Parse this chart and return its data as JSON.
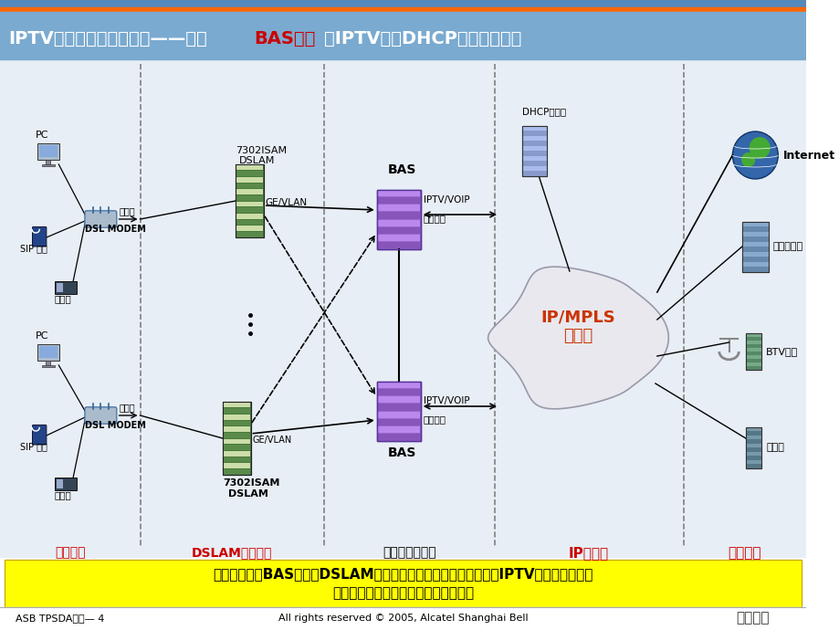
{
  "title_text1": "IPTV承载方案选择二之二——基于",
  "title_highlight": "BAS冗余",
  "title_text2": "的IPTV业务DHCP接入认证模式",
  "bg_color": "#ffffff",
  "header_bg": "#6699cc",
  "header_stripe_color": "#ff6600",
  "bottom_text": "网络冗余需要BAS设备和DSLAM设备支持相关功能和特性，在规模IPTV也时端口压力非\n常大，成本过高，网络的可扩展性差。",
  "bottom_bg": "#ffff00",
  "footer_left": "ASB TPSDA介绍— 4",
  "footer_center": "All rights reserved © 2005, Alcatel Shanghai Bell",
  "label_home": "家庭网络",
  "label_dslam": "DSLAM宽带接入",
  "label_bas": "业务接入控制层",
  "label_ip": "IP城域网",
  "label_platform": "业务平台",
  "label_internet": "Internet",
  "label_video": "视频服务器",
  "label_btv": "BTV前端",
  "label_softswitch": "软交换",
  "label_dhcp": "DHCP服务器",
  "label_ipmpls": "IP/MPLS\n城域网",
  "section_label_color": "#cc0000"
}
